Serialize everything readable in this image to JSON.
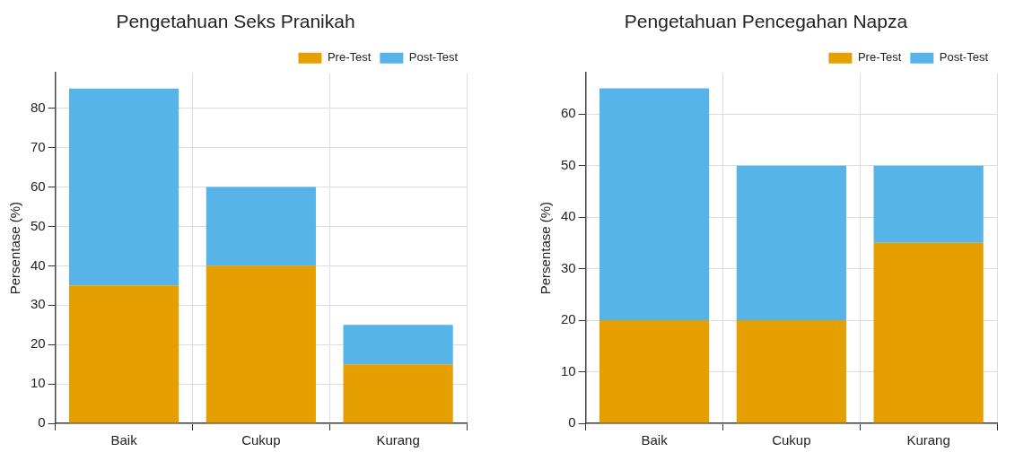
{
  "chart_data": [
    {
      "type": "bar",
      "title": "Pengetahuan Seks Pranikah",
      "ylabel": "Persentase (%)",
      "categories": [
        "Baik",
        "Cukup",
        "Kurang"
      ],
      "stacked": true,
      "ylim": [
        0,
        89
      ],
      "yticks": [
        0,
        10,
        20,
        30,
        40,
        50,
        60,
        70,
        80
      ],
      "grid": true,
      "legend": "top right",
      "series": [
        {
          "name": "Pre-Test",
          "color": "#e69f00",
          "values": [
            35,
            40,
            15
          ]
        },
        {
          "name": "Post-Test",
          "color": "#56b4e9",
          "values": [
            50,
            20,
            10
          ]
        }
      ]
    },
    {
      "type": "bar",
      "title": "Pengetahuan Pencegahan Napza",
      "ylabel": "Persentase (%)",
      "categories": [
        "Baik",
        "Cukup",
        "Kurang"
      ],
      "stacked": true,
      "ylim": [
        0,
        68
      ],
      "yticks": [
        0,
        10,
        20,
        30,
        40,
        50,
        60
      ],
      "grid": true,
      "legend": "top right",
      "series": [
        {
          "name": "Pre-Test",
          "color": "#e69f00",
          "values": [
            20,
            20,
            35
          ]
        },
        {
          "name": "Post-Test",
          "color": "#56b4e9",
          "values": [
            45,
            30,
            15
          ]
        }
      ]
    }
  ]
}
